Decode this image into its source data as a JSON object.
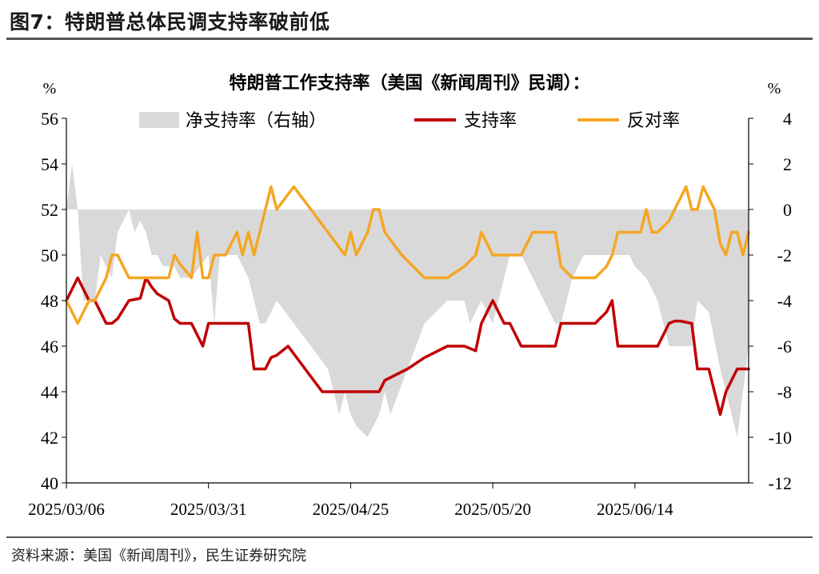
{
  "figure": {
    "title": "图7：特朗普总体民调支持率破前低",
    "source": "资料来源：美国《新闻周刊》，民生证券研究院"
  },
  "chart_data": {
    "type": "line",
    "title": "特朗普工作支持率（美国《新闻周刊》民调）：",
    "left_axis": {
      "unit": "%",
      "ylim": [
        40,
        56
      ],
      "ticks": [
        56,
        54,
        52,
        50,
        48,
        46,
        44,
        42,
        40
      ]
    },
    "right_axis": {
      "unit": "%",
      "ylim": [
        -12,
        4
      ],
      "ticks": [
        4,
        2,
        0,
        -2,
        -4,
        -6,
        -8,
        -10,
        -12
      ]
    },
    "x_ticks": [
      "2025/03/06",
      "2025/03/31",
      "2025/04/25",
      "2025/05/20",
      "2025/06/14"
    ],
    "x_start": "2025/03/06",
    "x_end": "2025/07/04",
    "legend": {
      "placement": "top"
    },
    "grid": false,
    "series": [
      {
        "name": "净支持率（右轴）",
        "kind": "area",
        "axis": "right",
        "color": "#d9d9d9",
        "x": [
          "2025/03/06",
          "2025/03/07",
          "2025/03/08",
          "2025/03/09",
          "2025/03/10",
          "2025/03/11",
          "2025/03/12",
          "2025/03/13",
          "2025/03/14",
          "2025/03/15",
          "2025/03/17",
          "2025/03/18",
          "2025/03/19",
          "2025/03/20",
          "2025/03/21",
          "2025/03/22",
          "2025/03/23",
          "2025/03/24",
          "2025/03/25",
          "2025/03/26",
          "2025/03/28",
          "2025/03/31",
          "2025/04/01",
          "2025/04/02",
          "2025/04/03",
          "2025/04/05",
          "2025/04/07",
          "2025/04/08",
          "2025/04/09",
          "2025/04/10",
          "2025/04/12",
          "2025/04/15",
          "2025/04/18",
          "2025/04/21",
          "2025/04/23",
          "2025/04/24",
          "2025/04/25",
          "2025/04/26",
          "2025/04/28",
          "2025/04/30",
          "2025/05/01",
          "2025/05/02",
          "2025/05/05",
          "2025/05/08",
          "2025/05/12",
          "2025/05/15",
          "2025/05/16",
          "2025/05/17",
          "2025/05/18",
          "2025/05/20",
          "2025/05/21",
          "2025/05/22",
          "2025/05/23",
          "2025/05/25",
          "2025/05/27",
          "2025/05/29",
          "2025/05/31",
          "2025/06/01",
          "2025/06/03",
          "2025/06/05",
          "2025/06/07",
          "2025/06/09",
          "2025/06/10",
          "2025/06/11",
          "2025/06/13",
          "2025/06/14",
          "2025/06/16",
          "2025/06/18",
          "2025/06/20",
          "2025/06/22",
          "2025/06/24",
          "2025/06/25",
          "2025/06/27",
          "2025/06/29",
          "2025/06/30",
          "2025/07/01",
          "2025/07/02",
          "2025/07/04"
        ],
        "values": [
          0,
          2,
          0,
          -4,
          -4,
          -4,
          -2,
          -2.5,
          -3,
          -1,
          0,
          -1,
          -0.5,
          -1,
          -2,
          -2,
          -2.5,
          -2.5,
          -2.5,
          -3,
          -3,
          -2,
          -5,
          -2,
          -2,
          -2,
          -3,
          -4,
          -5,
          -5,
          -4,
          -5,
          -6,
          -7,
          -9,
          -8,
          -9,
          -9.5,
          -10,
          -9,
          -8,
          -9,
          -7,
          -5,
          -4,
          -4,
          -5,
          -4.5,
          -4,
          -5,
          -4,
          -3,
          -2,
          -2,
          -3,
          -4,
          -5,
          -5,
          -3,
          -2,
          -2,
          -2,
          -2,
          -2,
          -2,
          -2.5,
          -3,
          -4,
          -6,
          -6,
          -6,
          -4,
          -4.5,
          -7,
          -8,
          -9,
          -10,
          -6
        ]
      },
      {
        "name": "支持率",
        "kind": "line",
        "axis": "left",
        "color": "#c00000",
        "x": [
          "2025/03/06",
          "2025/03/08",
          "2025/03/10",
          "2025/03/11",
          "2025/03/13",
          "2025/03/14",
          "2025/03/15",
          "2025/03/17",
          "2025/03/19",
          "2025/03/20",
          "2025/03/21",
          "2025/03/22",
          "2025/03/24",
          "2025/03/25",
          "2025/03/26",
          "2025/03/28",
          "2025/03/30",
          "2025/03/31",
          "2025/04/01",
          "2025/04/02",
          "2025/04/04",
          "2025/04/07",
          "2025/04/08",
          "2025/04/09",
          "2025/04/10",
          "2025/04/11",
          "2025/04/12",
          "2025/04/14",
          "2025/04/17",
          "2025/04/20",
          "2025/04/24",
          "2025/04/25",
          "2025/04/30",
          "2025/05/01",
          "2025/05/05",
          "2025/05/08",
          "2025/05/12",
          "2025/05/15",
          "2025/05/17",
          "2025/05/18",
          "2025/05/20",
          "2025/05/22",
          "2025/05/23",
          "2025/05/25",
          "2025/05/27",
          "2025/05/30",
          "2025/05/31",
          "2025/06/01",
          "2025/06/03",
          "2025/06/05",
          "2025/06/07",
          "2025/06/09",
          "2025/06/10",
          "2025/06/11",
          "2025/06/13",
          "2025/06/14",
          "2025/06/16",
          "2025/06/18",
          "2025/06/20",
          "2025/06/21",
          "2025/06/22",
          "2025/06/24",
          "2025/06/25",
          "2025/06/27",
          "2025/06/29",
          "2025/06/30",
          "2025/07/02",
          "2025/07/04"
        ],
        "values": [
          48,
          49,
          48,
          48,
          47,
          47,
          47.2,
          48,
          48.1,
          49,
          48.6,
          48.3,
          48,
          47.2,
          47,
          47,
          46,
          47,
          47,
          47,
          47,
          47,
          45,
          45,
          45,
          45.5,
          45.6,
          46,
          45,
          44,
          44,
          44,
          44,
          44.5,
          45,
          45.5,
          46,
          46,
          45.8,
          47,
          48,
          47,
          47,
          46,
          46,
          46,
          46,
          47,
          47,
          47,
          47,
          47.5,
          48,
          46,
          46,
          46,
          46,
          46,
          47,
          47.1,
          47.1,
          47,
          45,
          45,
          43,
          44,
          45,
          45
        ]
      },
      {
        "name": "反对率",
        "kind": "line",
        "axis": "left",
        "color": "#f5a623",
        "x": [
          "2025/03/06",
          "2025/03/08",
          "2025/03/10",
          "2025/03/11",
          "2025/03/13",
          "2025/03/14",
          "2025/03/15",
          "2025/03/17",
          "2025/03/18",
          "2025/03/19",
          "2025/03/21",
          "2025/03/24",
          "2025/03/25",
          "2025/03/26",
          "2025/03/28",
          "2025/03/29",
          "2025/03/30",
          "2025/03/31",
          "2025/04/01",
          "2025/04/03",
          "2025/04/05",
          "2025/04/06",
          "2025/04/07",
          "2025/04/08",
          "2025/04/10",
          "2025/04/11",
          "2025/04/12",
          "2025/04/15",
          "2025/04/18",
          "2025/04/21",
          "2025/04/24",
          "2025/04/25",
          "2025/04/26",
          "2025/04/28",
          "2025/04/29",
          "2025/04/30",
          "2025/05/01",
          "2025/05/04",
          "2025/05/08",
          "2025/05/12",
          "2025/05/15",
          "2025/05/17",
          "2025/05/18",
          "2025/05/20",
          "2025/05/22",
          "2025/05/24",
          "2025/05/25",
          "2025/05/27",
          "2025/05/31",
          "2025/06/01",
          "2025/06/03",
          "2025/06/05",
          "2025/06/07",
          "2025/06/09",
          "2025/06/10",
          "2025/06/11",
          "2025/06/14",
          "2025/06/15",
          "2025/06/16",
          "2025/06/17",
          "2025/06/18",
          "2025/06/20",
          "2025/06/21",
          "2025/06/23",
          "2025/06/24",
          "2025/06/25",
          "2025/06/26",
          "2025/06/28",
          "2025/06/29",
          "2025/06/30",
          "2025/07/01",
          "2025/07/02",
          "2025/07/03",
          "2025/07/04"
        ],
        "values": [
          48,
          47,
          48,
          48,
          49,
          50,
          50,
          49,
          49,
          49,
          49,
          49,
          50,
          49.6,
          49,
          51,
          49,
          49,
          50,
          50,
          51,
          50,
          51,
          50,
          52,
          53,
          52,
          53,
          52,
          51,
          50,
          51,
          50,
          51,
          52,
          52,
          51,
          50,
          49,
          49,
          49.5,
          50,
          51,
          50,
          50,
          50,
          50,
          51,
          51,
          49.5,
          49,
          49,
          49,
          49.5,
          50,
          51,
          51,
          51,
          52,
          51,
          51,
          51.5,
          52,
          53,
          52,
          52,
          53,
          52,
          50.5,
          50,
          51,
          51,
          50,
          51
        ]
      }
    ]
  }
}
